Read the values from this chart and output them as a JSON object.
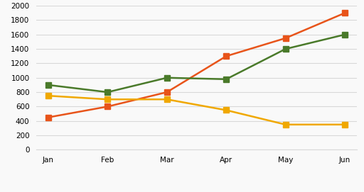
{
  "months": [
    "Jan",
    "Feb",
    "Mar",
    "Apr",
    "May",
    "Jun"
  ],
  "in_person": [
    450,
    600,
    800,
    1300,
    1550,
    1900
  ],
  "by_letter_email": [
    750,
    700,
    700,
    550,
    350,
    350
  ],
  "by_telephone": [
    900,
    800,
    1000,
    980,
    1400,
    1600
  ],
  "colors": {
    "in_person": "#E8541A",
    "by_letter_email": "#F0A800",
    "by_telephone": "#4A7A2A"
  },
  "ylim": [
    0,
    2000
  ],
  "yticks": [
    0,
    200,
    400,
    600,
    800,
    1000,
    1200,
    1400,
    1600,
    1800,
    2000
  ],
  "background_color": "#f9f9f9",
  "grid_color": "#d8d8d8",
  "marker_size": 6,
  "line_width": 1.8,
  "tick_fontsize": 7.5,
  "legend_fontsize": 8
}
